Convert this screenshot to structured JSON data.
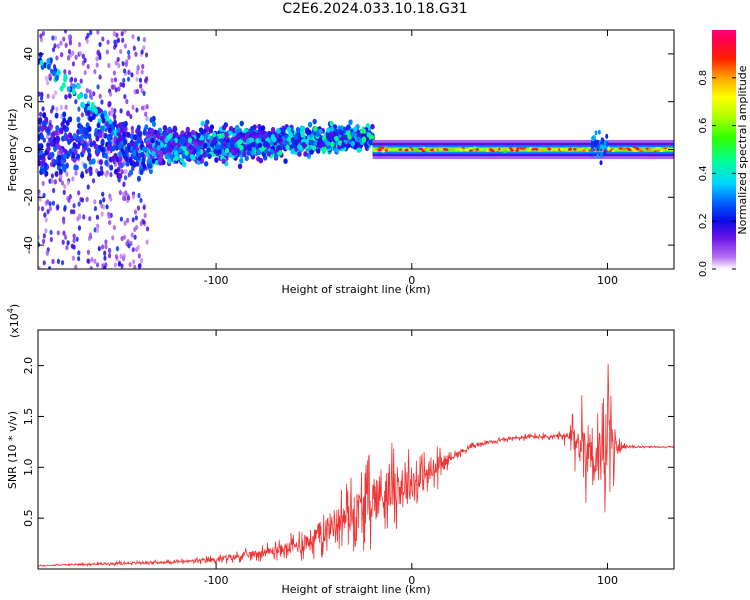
{
  "title": "C2E6.2024.033.10.18.G31",
  "chart_data": [
    {
      "type": "heatmap",
      "xlabel": "Height of straight line (km)",
      "ylabel": "Frequency (Hz)",
      "xlim": [
        -191,
        134
      ],
      "ylim": [
        -50,
        50
      ],
      "xticks": [
        -100,
        0,
        100
      ],
      "xtick_labels": [
        "-100",
        "0",
        "100"
      ],
      "yticks": [
        -40,
        -20,
        0,
        20,
        40
      ],
      "ytick_labels": [
        "-40",
        "-20",
        "0",
        "20",
        "40"
      ],
      "colorbar": {
        "label": "Normalized spectral amplitude",
        "range": [
          0.0,
          1.0
        ],
        "ticks": [
          0.0,
          0.2,
          0.4,
          0.6,
          0.8
        ],
        "tick_labels": [
          "0.0",
          "0.2",
          "0.4",
          "0.6",
          "0.8"
        ]
      },
      "features": [
        {
          "x": [
            -191,
            -135
          ],
          "freq_spread": [
            -50,
            50
          ],
          "amplitude": [
            0.0,
            0.25
          ]
        },
        {
          "x": [
            -135,
            -20
          ],
          "freq_center": [
            0,
            5
          ],
          "freq_spread": [
            -8,
            10
          ],
          "amplitude": [
            0.1,
            0.45
          ]
        },
        {
          "x": [
            -20,
            134
          ],
          "freq_center": 0,
          "freq_spread": [
            -2,
            2
          ],
          "amplitude": [
            0.5,
            1.0
          ]
        }
      ]
    },
    {
      "type": "line",
      "xlabel": "Height of straight line (km)",
      "ylabel": "SNR (10 * v/v)",
      "yscale_label": "(x10",
      "yscale_exp": "4",
      "xlim": [
        -191,
        134
      ],
      "ylim": [
        0,
        2.35
      ],
      "xticks": [
        -100,
        0,
        100
      ],
      "xtick_labels": [
        "-100",
        "0",
        "100"
      ],
      "yticks": [
        0.5,
        1.0,
        1.5,
        2.0
      ],
      "ytick_labels": [
        "0.5",
        "1.0",
        "1.5",
        "2.0"
      ],
      "series": [
        {
          "color": "#ee3333",
          "x": [
            -191,
            -180,
            -160,
            -140,
            -120,
            -100,
            -90,
            -80,
            -70,
            -60,
            -50,
            -40,
            -30,
            -20,
            -10,
            0,
            10,
            20,
            30,
            40,
            50,
            60,
            70,
            80,
            85,
            90,
            95,
            100,
            102,
            105,
            110,
            120,
            134
          ],
          "y": [
            0.03,
            0.04,
            0.05,
            0.06,
            0.07,
            0.09,
            0.12,
            0.15,
            0.18,
            0.22,
            0.3,
            0.45,
            0.55,
            0.68,
            0.8,
            0.85,
            0.95,
            1.1,
            1.2,
            1.25,
            1.28,
            1.3,
            1.3,
            1.3,
            1.25,
            1.2,
            1.1,
            1.2,
            1.2,
            1.2,
            1.2,
            1.2,
            1.2
          ],
          "amplitude": [
            0.01,
            0.01,
            0.02,
            0.02,
            0.03,
            0.05,
            0.06,
            0.08,
            0.1,
            0.15,
            0.25,
            0.3,
            0.4,
            0.5,
            0.45,
            0.35,
            0.3,
            0.06,
            0.04,
            0.03,
            0.03,
            0.04,
            0.05,
            0.1,
            0.45,
            0.6,
            0.6,
            0.9,
            0.6,
            0.1,
            0.02,
            0.01,
            0.01
          ]
        }
      ]
    }
  ]
}
